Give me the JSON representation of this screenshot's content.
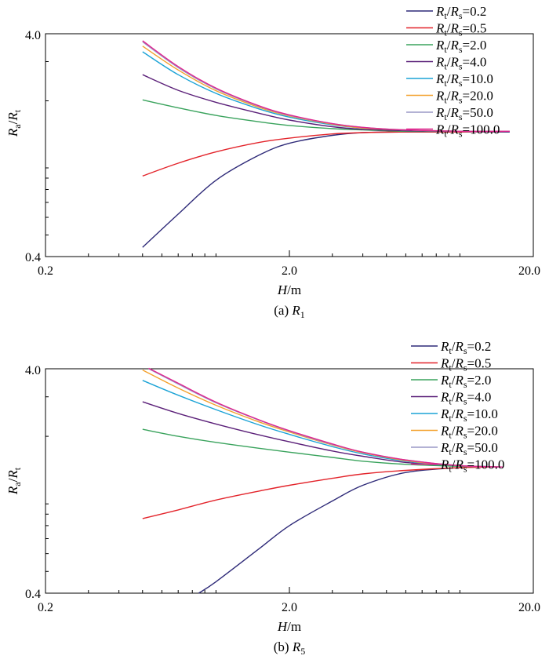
{
  "chart_data": [
    {
      "type": "line",
      "caption": "(a) R1",
      "caption_prefix": "(a) ",
      "caption_var": "R",
      "caption_sub": "1",
      "xlabel": "H/m",
      "xlabel_var": "H",
      "xlabel_unit": "/m",
      "ylabel": "Ra/Rt",
      "x_scale": "log",
      "y_scale": "log",
      "xlim": [
        0.2,
        20.0
      ],
      "ylim": [
        0.4,
        4.0
      ],
      "x_ticks": [
        "0.2",
        "2.0",
        "20.0"
      ],
      "y_ticks": [
        "0.4",
        "4.0"
      ],
      "legend_position": "top-right",
      "grid": false,
      "series": [
        {
          "name": "Rt/Rs=0.2",
          "value_label": "0.2",
          "color": "#2e2a78",
          "x": [
            0.5,
            0.7,
            1.0,
            1.5,
            2.0,
            3.0,
            4.0,
            6.0,
            10.0,
            16.0
          ],
          "y": [
            0.44,
            0.62,
            0.88,
            1.14,
            1.29,
            1.4,
            1.44,
            1.45,
            1.45,
            1.45
          ]
        },
        {
          "name": "Rt/Rs=0.5",
          "value_label": "0.5",
          "color": "#e3242b",
          "x": [
            0.5,
            0.7,
            1.0,
            1.5,
            2.0,
            3.0,
            4.0,
            6.0,
            10.0,
            16.0
          ],
          "y": [
            0.92,
            1.05,
            1.18,
            1.3,
            1.36,
            1.42,
            1.44,
            1.45,
            1.45,
            1.46
          ]
        },
        {
          "name": "Rt/Rs=2.0",
          "value_label": "2.0",
          "color": "#3aa35d",
          "x": [
            0.5,
            0.7,
            1.0,
            1.5,
            2.0,
            3.0,
            4.0,
            6.0,
            10.0,
            16.0
          ],
          "y": [
            2.02,
            1.86,
            1.72,
            1.61,
            1.55,
            1.5,
            1.48,
            1.46,
            1.46,
            1.46
          ]
        },
        {
          "name": "Rt/Rs=4.0",
          "value_label": "4.0",
          "color": "#5b2079",
          "x": [
            0.5,
            0.7,
            1.0,
            1.5,
            2.0,
            3.0,
            4.0,
            6.0,
            10.0,
            16.0
          ],
          "y": [
            2.62,
            2.23,
            1.97,
            1.76,
            1.64,
            1.53,
            1.49,
            1.47,
            1.46,
            1.46
          ]
        },
        {
          "name": "Rt/Rs=10.0",
          "value_label": "10.0",
          "color": "#1ba3d6",
          "x": [
            0.5,
            0.7,
            1.0,
            1.5,
            2.0,
            3.0,
            4.0,
            6.0,
            10.0,
            16.0
          ],
          "y": [
            3.32,
            2.62,
            2.16,
            1.84,
            1.69,
            1.56,
            1.51,
            1.48,
            1.46,
            1.46
          ]
        },
        {
          "name": "Rt/Rs=20.0",
          "value_label": "20.0",
          "color": "#f3a12d",
          "x": [
            0.5,
            0.7,
            1.0,
            1.5,
            2.0,
            3.0,
            4.0,
            6.0,
            10.0,
            16.0
          ],
          "y": [
            3.52,
            2.75,
            2.22,
            1.87,
            1.71,
            1.57,
            1.51,
            1.48,
            1.46,
            1.46
          ]
        },
        {
          "name": "Rt/Rs=50.0",
          "value_label": "50.0",
          "color": "#9a98c6",
          "x": [
            0.5,
            0.7,
            1.0,
            1.5,
            2.0,
            3.0,
            4.0,
            6.0,
            10.0,
            16.0
          ],
          "y": [
            3.68,
            2.82,
            2.26,
            1.89,
            1.72,
            1.58,
            1.52,
            1.48,
            1.46,
            1.46
          ]
        },
        {
          "name": "Rt/Rs=100.0",
          "value_label": "100.0",
          "color": "#e0268f",
          "x": [
            0.5,
            0.7,
            1.0,
            1.5,
            2.0,
            3.0,
            4.0,
            6.0,
            10.0,
            16.0
          ],
          "y": [
            3.72,
            2.85,
            2.28,
            1.9,
            1.73,
            1.58,
            1.52,
            1.48,
            1.46,
            1.46
          ]
        }
      ]
    },
    {
      "type": "line",
      "caption": "(b) R5",
      "caption_prefix": "(b) ",
      "caption_var": "R",
      "caption_sub": "5",
      "xlabel": "H/m",
      "xlabel_var": "H",
      "xlabel_unit": "/m",
      "ylabel": "Ra/Rt",
      "x_scale": "log",
      "y_scale": "log",
      "xlim": [
        0.2,
        20.0
      ],
      "ylim": [
        0.4,
        4.0
      ],
      "x_ticks": [
        "0.2",
        "2.0",
        "20.0"
      ],
      "y_ticks": [
        "0.4",
        "4.0"
      ],
      "legend_position": "top-right",
      "grid": false,
      "series": [
        {
          "name": "Rt/Rs=0.2",
          "value_label": "0.2",
          "color": "#2e2a78",
          "x": [
            0.85,
            1.0,
            1.5,
            2.0,
            3.0,
            4.0,
            6.0,
            10.0,
            15.0
          ],
          "y": [
            0.4,
            0.45,
            0.63,
            0.8,
            1.03,
            1.21,
            1.38,
            1.45,
            1.46
          ]
        },
        {
          "name": "Rt/Rs=0.5",
          "value_label": "0.5",
          "color": "#e3242b",
          "x": [
            0.5,
            0.7,
            1.0,
            1.5,
            2.0,
            3.0,
            4.0,
            6.0,
            10.0,
            15.0
          ],
          "y": [
            0.86,
            0.94,
            1.04,
            1.14,
            1.21,
            1.3,
            1.36,
            1.41,
            1.45,
            1.46
          ]
        },
        {
          "name": "Rt/Rs=2.0",
          "value_label": "2.0",
          "color": "#3aa35d",
          "x": [
            0.5,
            0.7,
            1.0,
            1.5,
            2.0,
            3.0,
            4.0,
            6.0,
            10.0,
            15.0
          ],
          "y": [
            2.15,
            2.0,
            1.88,
            1.77,
            1.7,
            1.61,
            1.55,
            1.5,
            1.47,
            1.46
          ]
        },
        {
          "name": "Rt/Rs=4.0",
          "value_label": "4.0",
          "color": "#5b2079",
          "x": [
            0.5,
            0.7,
            1.0,
            1.5,
            2.0,
            3.0,
            4.0,
            6.0,
            10.0,
            15.0
          ],
          "y": [
            2.85,
            2.53,
            2.27,
            2.03,
            1.89,
            1.72,
            1.63,
            1.53,
            1.48,
            1.46
          ]
        },
        {
          "name": "Rt/Rs=10.0",
          "value_label": "10.0",
          "color": "#1ba3d6",
          "x": [
            0.5,
            0.7,
            1.0,
            1.5,
            2.0,
            3.0,
            4.0,
            6.0,
            10.0,
            15.0
          ],
          "y": [
            3.55,
            3.05,
            2.63,
            2.25,
            2.04,
            1.8,
            1.67,
            1.55,
            1.48,
            1.46
          ]
        },
        {
          "name": "Rt/Rs=20.0",
          "value_label": "20.0",
          "color": "#f3a12d",
          "x": [
            0.5,
            0.7,
            1.0,
            1.5,
            2.0,
            3.0,
            4.0,
            6.0,
            10.0,
            15.0
          ],
          "y": [
            3.95,
            3.28,
            2.75,
            2.32,
            2.09,
            1.83,
            1.69,
            1.56,
            1.48,
            1.46
          ]
        },
        {
          "name": "Rt/Rs=50.0",
          "value_label": "50.0",
          "color": "#9a98c6",
          "x": [
            0.53,
            0.7,
            1.0,
            1.5,
            2.0,
            3.0,
            4.0,
            6.0,
            10.0,
            15.0
          ],
          "y": [
            4.0,
            3.42,
            2.82,
            2.36,
            2.11,
            1.84,
            1.7,
            1.57,
            1.48,
            1.46
          ]
        },
        {
          "name": "Rt/Rs=100.0",
          "value_label": "100.0",
          "color": "#e0268f",
          "x": [
            0.53,
            0.7,
            1.0,
            1.5,
            2.0,
            3.0,
            4.0,
            6.0,
            10.0,
            15.0
          ],
          "y": [
            4.02,
            3.45,
            2.84,
            2.37,
            2.12,
            1.85,
            1.7,
            1.57,
            1.48,
            1.46
          ]
        }
      ]
    }
  ]
}
